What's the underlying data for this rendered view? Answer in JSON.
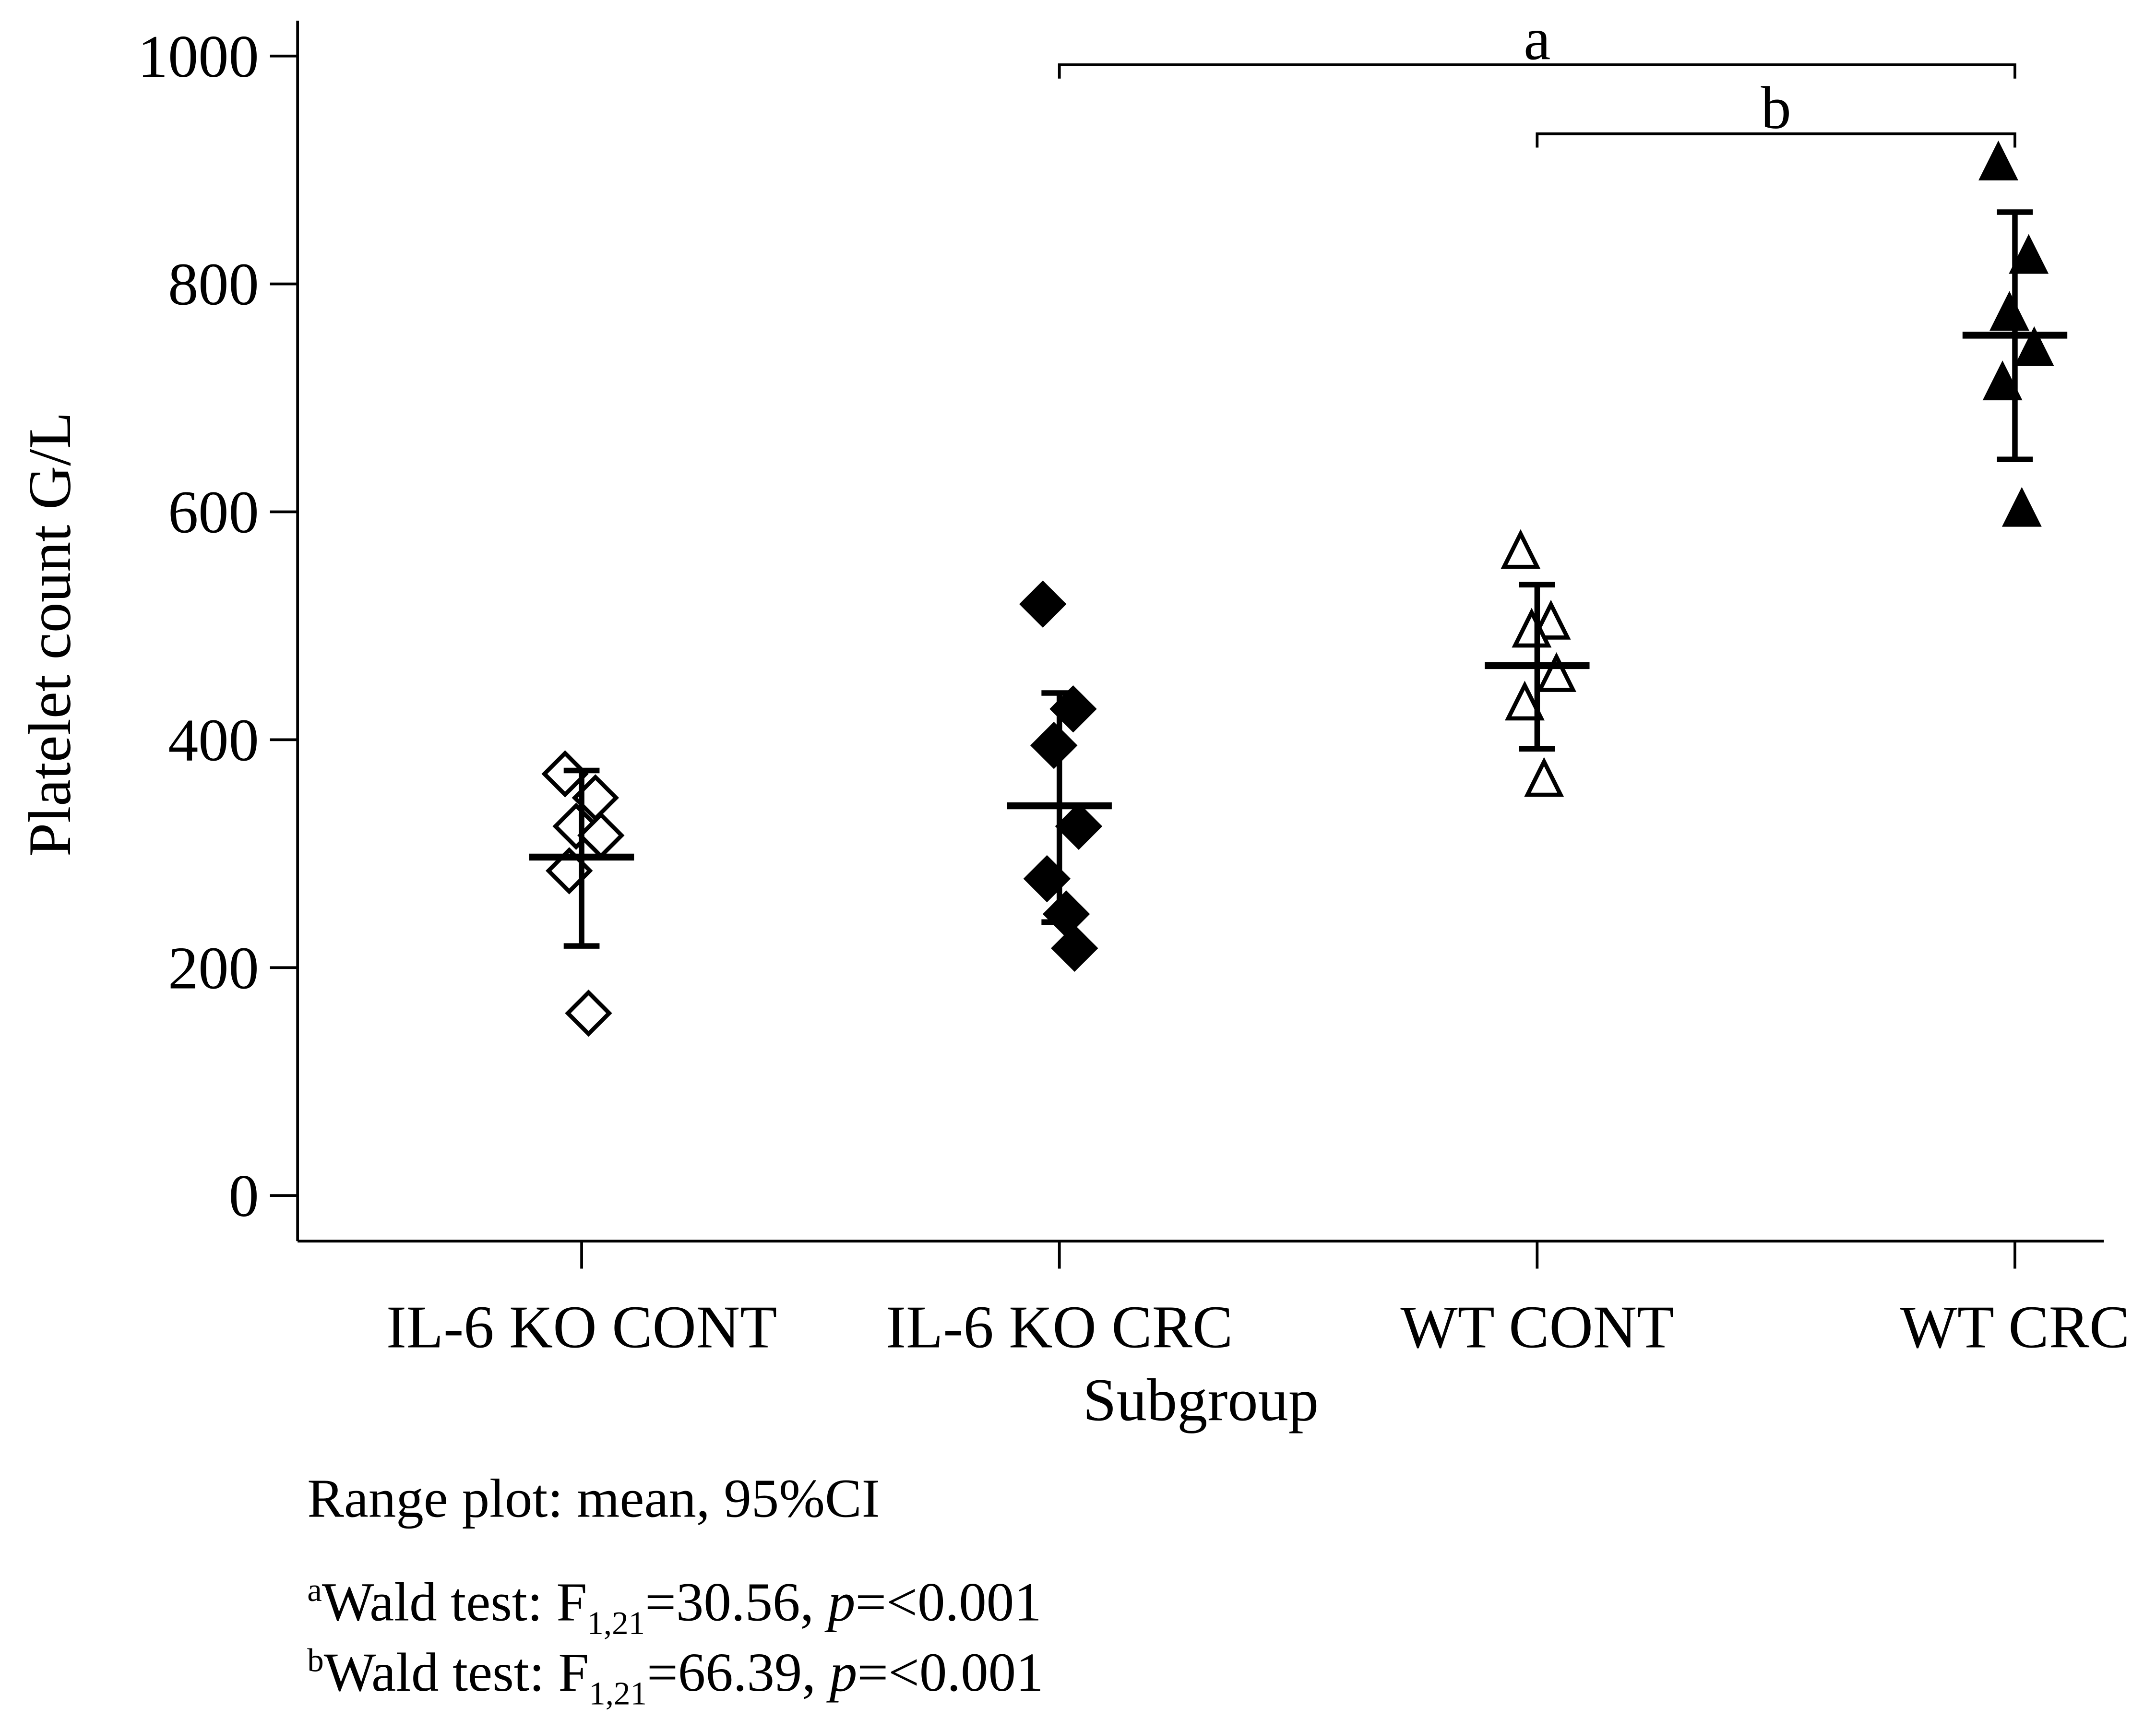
{
  "chart_data": {
    "type": "dot-range",
    "categories": [
      "IL-6 KO CONT",
      "IL-6 KO CRC",
      "WT CONT",
      "WT CRC"
    ],
    "markers": [
      "diamond-open",
      "diamond",
      "triangle-open",
      "triangle"
    ],
    "color": "#000000",
    "points": [
      [
        370,
        349,
        324,
        316,
        285,
        160
      ],
      [
        519,
        427,
        395,
        324,
        278,
        247,
        217
      ],
      [
        565,
        503,
        496,
        457,
        432,
        365
      ],
      [
        906,
        824,
        774,
        743,
        713,
        602
      ]
    ],
    "means": [
      297,
      342,
      465,
      755
    ],
    "ci_low": [
      219,
      240,
      392,
      646
    ],
    "ci_high": [
      373,
      441,
      536,
      863
    ],
    "ylim": [
      -40,
      1031
    ],
    "yticks": [
      0,
      200,
      400,
      600,
      800,
      1000
    ],
    "y_label": "Platelet count G/L",
    "x_label": "Subgroup",
    "brackets": [
      {
        "label": "a",
        "from": 1,
        "to": 3
      },
      {
        "label": "b",
        "from": 2,
        "to": 3
      }
    ],
    "notes": {
      "range": "Range plot: mean, 95%CI",
      "footnotes": [
        {
          "mark": "a",
          "text": "Wald test: F",
          "sub": "1,21",
          "stat": "=30.56, ",
          "p": "p",
          "result": "=<0.001"
        },
        {
          "mark": "b",
          "text": "Wald test: F",
          "sub": "1,21",
          "stat": "=66.39, ",
          "p": "p",
          "result": "=<0.001"
        }
      ]
    }
  }
}
